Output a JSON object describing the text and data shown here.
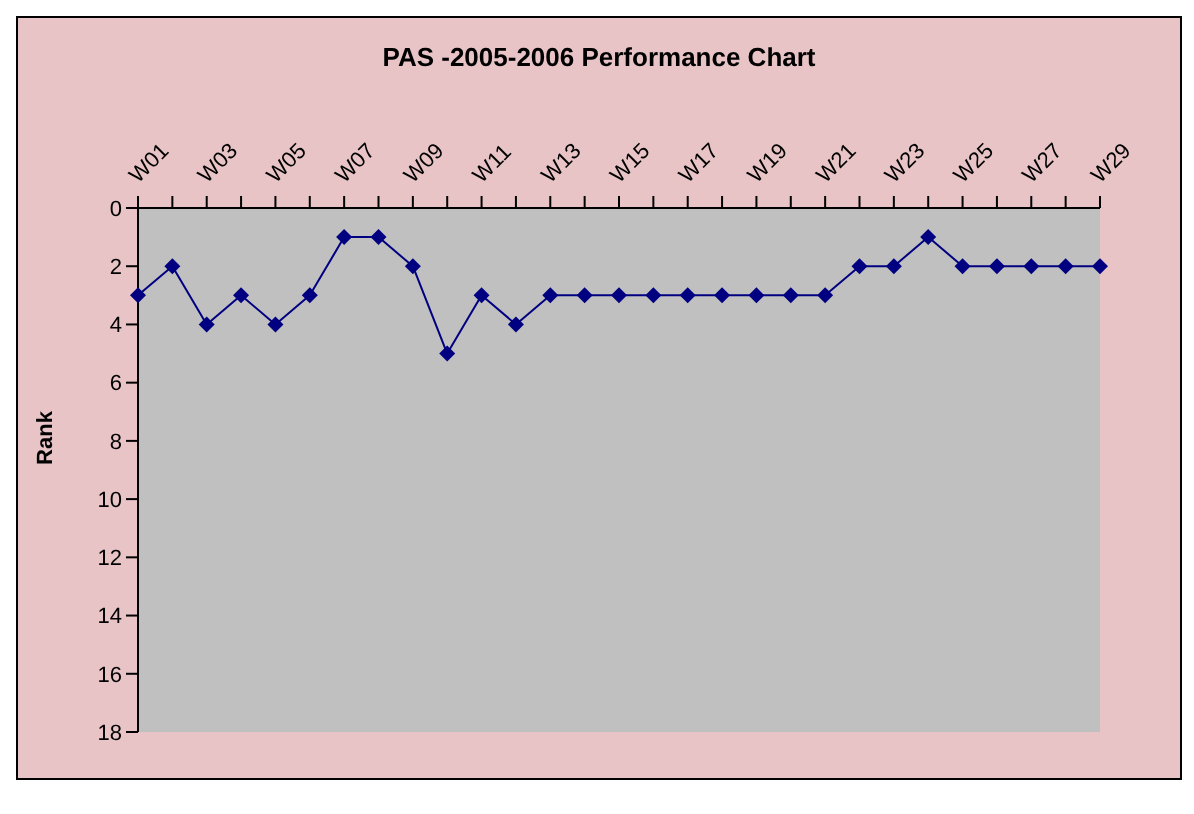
{
  "chart_data": {
    "type": "line",
    "title": "PAS -2005-2006 Performance Chart",
    "ylabel": "Rank",
    "categories": [
      "W01",
      null,
      "W03",
      null,
      "W05",
      null,
      "W07",
      null,
      "W09",
      null,
      "W11",
      null,
      "W13",
      null,
      "W15",
      null,
      "W17",
      null,
      "W19",
      null,
      "W21",
      null,
      "W23",
      null,
      "W25",
      null,
      "W27",
      null,
      "W29"
    ],
    "series": [
      {
        "color": "#000080",
        "values": [
          3,
          2,
          4,
          3,
          4,
          3,
          1,
          1,
          2,
          5,
          3,
          4,
          3,
          3,
          3,
          3,
          3,
          3,
          3,
          3,
          3,
          2,
          2,
          1,
          2,
          2,
          2,
          2,
          2
        ]
      }
    ],
    "ylim": [
      18,
      0
    ],
    "yticks": [
      0,
      2,
      4,
      6,
      8,
      10,
      12,
      14,
      16,
      18
    ],
    "grid": false,
    "legend": false,
    "marker": "diamond",
    "line_style": "solid"
  }
}
